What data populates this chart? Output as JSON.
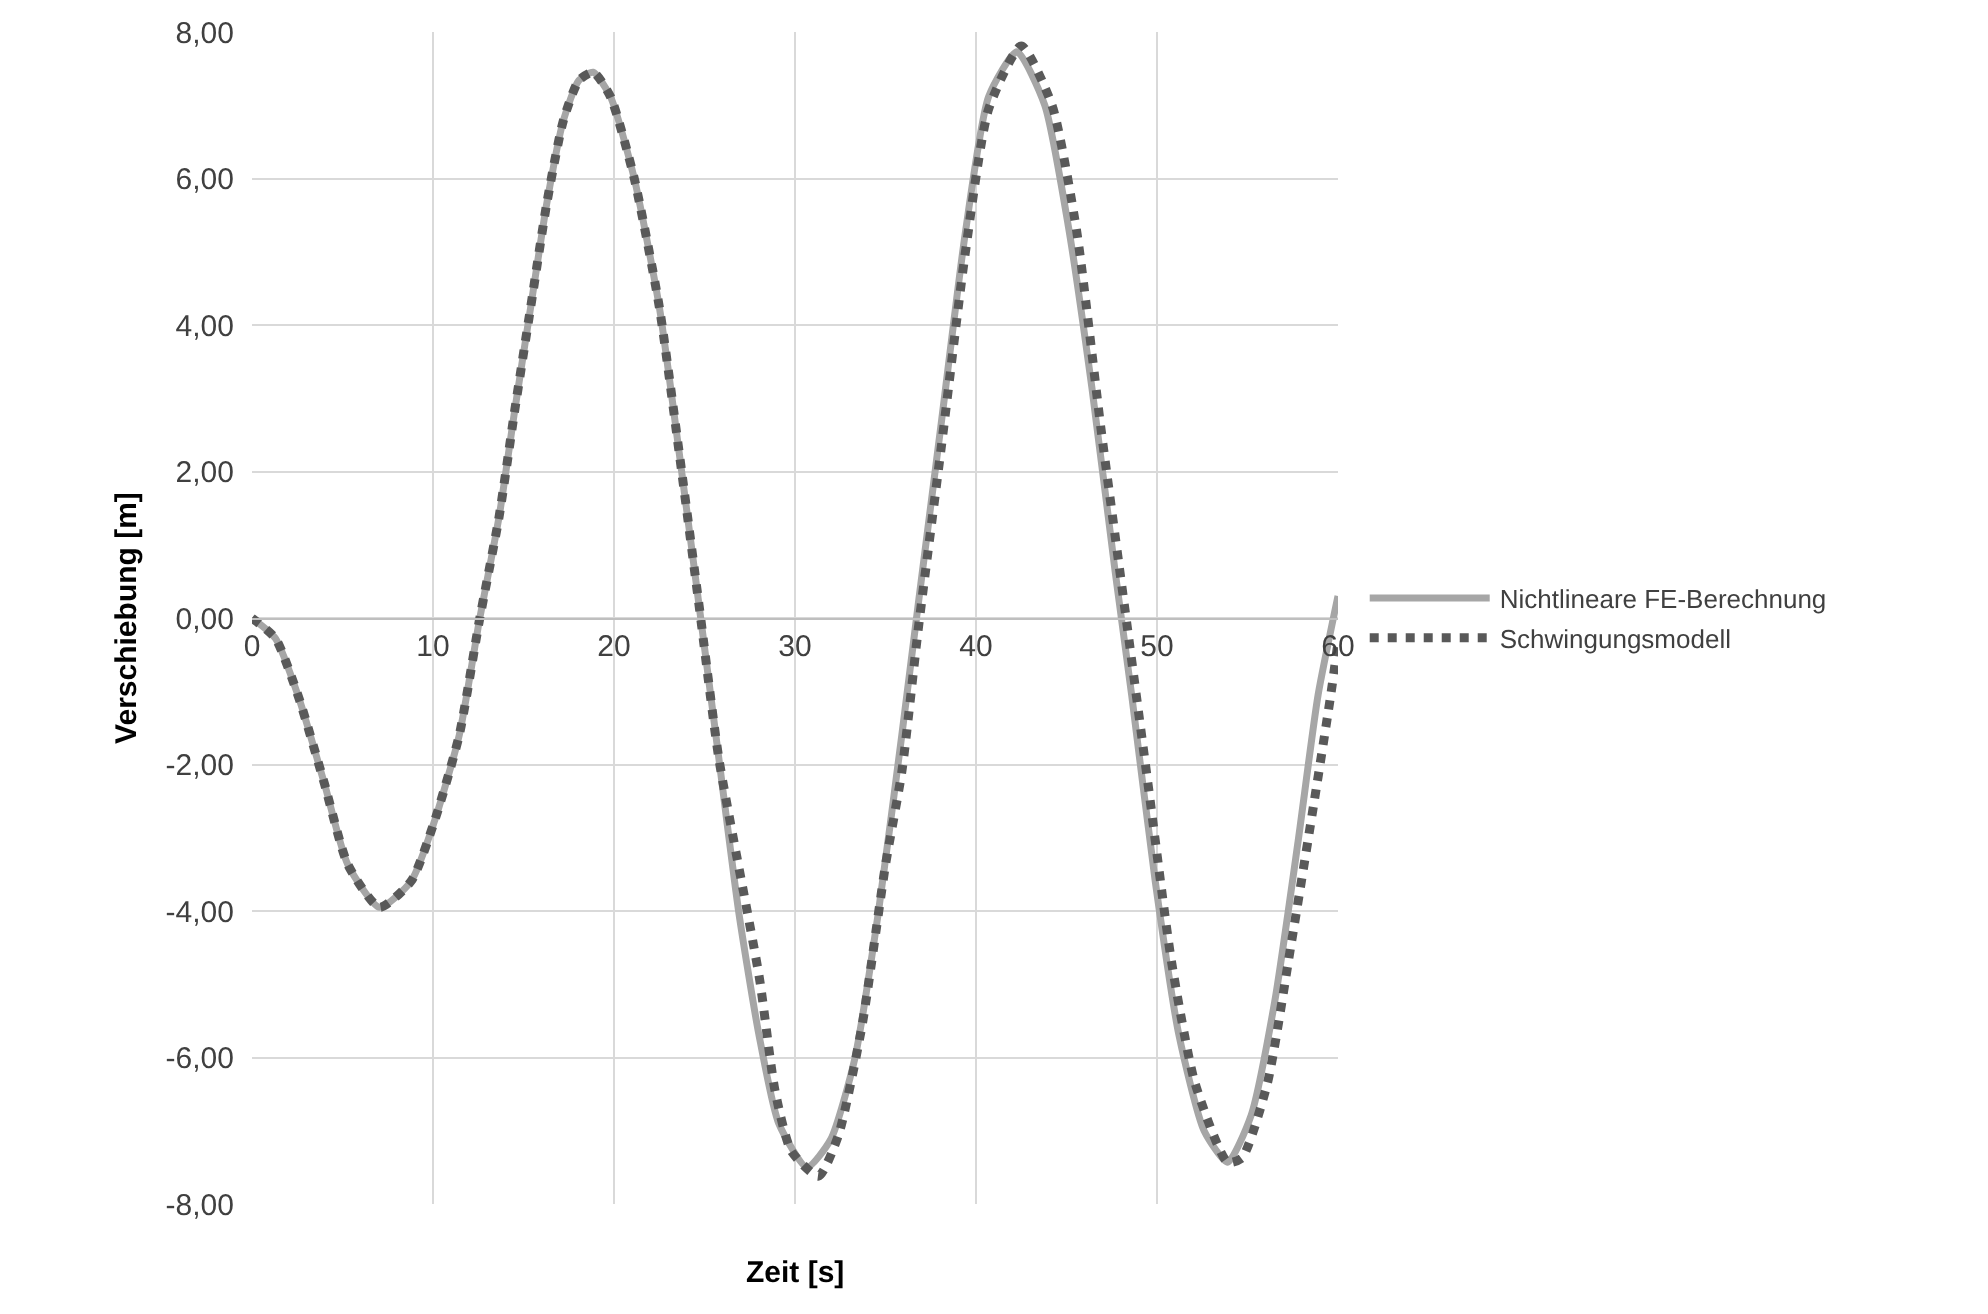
{
  "chart_data": {
    "type": "line",
    "xlabel": "Zeit [s]",
    "ylabel": "Verschiebung [m]",
    "xlim": [
      0,
      60
    ],
    "xticks": [
      0,
      10,
      20,
      30,
      40,
      50,
      60
    ],
    "ylim": [
      -8,
      8
    ],
    "yticks": [
      {
        "value": -8,
        "label": "-8,00"
      },
      {
        "value": -6,
        "label": "-6,00"
      },
      {
        "value": -4,
        "label": "-4,00"
      },
      {
        "value": -2,
        "label": "-2,00"
      },
      {
        "value": 0,
        "label": "0,00"
      },
      {
        "value": 2,
        "label": "2,00"
      },
      {
        "value": 4,
        "label": "4,00"
      },
      {
        "value": 6,
        "label": "6,00"
      },
      {
        "value": 8,
        "label": "8,00"
      }
    ],
    "grid": true,
    "legend": "right",
    "marker": "none",
    "series": [
      {
        "name": "Nichtlineare FE-Berechnung",
        "color": "#a6a6a6",
        "line_style": "solid",
        "x": [
          0,
          1.3,
          2.6,
          4.0,
          5.3,
          7.05,
          8.8,
          10.1,
          11.45,
          12.55,
          13.65,
          14.5,
          15.4,
          16.3,
          17.2,
          18.06,
          18.85,
          19.8,
          21.1,
          22.5,
          23.6,
          24.7,
          25.8,
          26.9,
          28.0,
          29.1,
          30.66,
          31.97,
          33.3,
          34.6,
          35.9,
          36.8,
          38.1,
          39.4,
          40.7,
          42.26,
          43.8,
          45.1,
          46.4,
          47.7,
          48.6,
          49.9,
          51.2,
          52.6,
          53.9,
          55.2,
          56.5,
          57.8,
          58.9,
          60.0
        ],
        "values": [
          0,
          -0.28,
          -1.1,
          -2.26,
          -3.37,
          -3.95,
          -3.59,
          -2.76,
          -1.6,
          -0.05,
          1.38,
          2.81,
          4.25,
          5.68,
          6.79,
          7.34,
          7.45,
          7.12,
          6.02,
          4.25,
          2.26,
          0.17,
          -1.93,
          -4.03,
          -5.68,
          -6.9,
          -7.5,
          -7.12,
          -6.02,
          -4.03,
          -1.6,
          0.17,
          2.7,
          5.24,
          7.12,
          7.73,
          7.0,
          5.35,
          3.15,
          0.61,
          -1.05,
          -3.59,
          -5.68,
          -7.0,
          -7.43,
          -6.79,
          -5.24,
          -3.04,
          -1.05,
          0.3
        ]
      },
      {
        "name": "Schwingungsmodell",
        "color": "#595959",
        "line_style": "dotted",
        "x": [
          0,
          1.3,
          2.6,
          4.0,
          5.3,
          7.05,
          8.8,
          10.1,
          11.45,
          12.55,
          13.65,
          14.5,
          15.4,
          16.3,
          17.2,
          18.06,
          18.85,
          19.8,
          21.1,
          22.5,
          23.6,
          24.7,
          25.8,
          28.03,
          28.9,
          29.8,
          31.3,
          32.4,
          33.7,
          35.0,
          35.9,
          36.8,
          38.1,
          39.4,
          40.7,
          42.5,
          44.2,
          45.55,
          46.9,
          48.2,
          49.5,
          50.8,
          52.1,
          53.9,
          54.7,
          56.1,
          57.4,
          58.7,
          59.6,
          60.0
        ],
        "values": [
          0,
          -0.28,
          -1.1,
          -2.26,
          -3.37,
          -3.95,
          -3.59,
          -2.76,
          -1.6,
          -0.05,
          1.38,
          2.81,
          4.25,
          5.68,
          6.79,
          7.34,
          7.45,
          7.12,
          6.02,
          4.25,
          2.26,
          0.17,
          -1.93,
          -4.91,
          -6.46,
          -7.28,
          -7.62,
          -7.06,
          -5.57,
          -3.37,
          -2.1,
          -0.17,
          2.37,
          4.97,
          6.95,
          7.81,
          7.0,
          5.3,
          2.59,
          0.17,
          -2.26,
          -4.69,
          -6.35,
          -7.43,
          -7.37,
          -6.35,
          -4.47,
          -2.48,
          -1.05,
          -0.33
        ]
      }
    ]
  }
}
